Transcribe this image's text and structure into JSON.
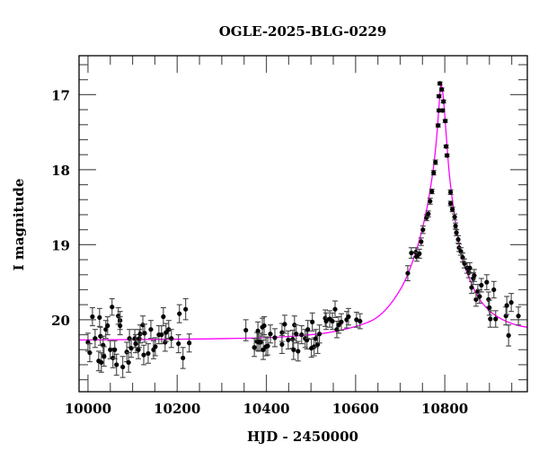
{
  "chart_data": {
    "type": "scatter",
    "title": "OGLE-2025-BLG-0229",
    "xlabel": "HJD - 2450000",
    "ylabel": "I magnitude",
    "xlim": [
      9980,
      10985
    ],
    "ylim": [
      20.96,
      16.48
    ],
    "y_inverted": true,
    "grid": false,
    "x_ticks": [
      10000,
      10200,
      10400,
      10600,
      10800
    ],
    "y_ticks": [
      17,
      18,
      19,
      20
    ],
    "colors": {
      "points": "#000000",
      "model": "#ff00ff"
    },
    "points_format": [
      "hjd",
      "mag",
      "err"
    ],
    "points": [
      [
        10000,
        20.3,
        0.12
      ],
      [
        10004,
        20.44,
        0.12
      ],
      [
        10010,
        19.96,
        0.12
      ],
      [
        10016,
        20.25,
        0.12
      ],
      [
        10024,
        20.55,
        0.13
      ],
      [
        10026,
        19.97,
        0.12
      ],
      [
        10028,
        20.22,
        0.12
      ],
      [
        10030,
        20.57,
        0.13
      ],
      [
        10034,
        20.34,
        0.12
      ],
      [
        10036,
        20.49,
        0.13
      ],
      [
        10040,
        20.13,
        0.12
      ],
      [
        10044,
        20.08,
        0.12
      ],
      [
        10050,
        20.4,
        0.12
      ],
      [
        10054,
        19.83,
        0.11
      ],
      [
        10056,
        20.51,
        0.13
      ],
      [
        10060,
        20.4,
        0.12
      ],
      [
        10064,
        20.6,
        0.14
      ],
      [
        10068,
        19.95,
        0.11
      ],
      [
        10072,
        20.01,
        0.12
      ],
      [
        10072,
        20.08,
        0.12
      ],
      [
        10078,
        20.63,
        0.14
      ],
      [
        10087,
        20.43,
        0.13
      ],
      [
        10091,
        20.57,
        0.13
      ],
      [
        10093,
        20.25,
        0.12
      ],
      [
        10097,
        20.38,
        0.12
      ],
      [
        10105,
        20.25,
        0.12
      ],
      [
        10107,
        20.32,
        0.12
      ],
      [
        10113,
        20.4,
        0.12
      ],
      [
        10115,
        20.25,
        0.12
      ],
      [
        10117,
        20.19,
        0.12
      ],
      [
        10123,
        20.07,
        0.12
      ],
      [
        10125,
        20.47,
        0.13
      ],
      [
        10127,
        20.18,
        0.12
      ],
      [
        10135,
        20.45,
        0.13
      ],
      [
        10141,
        20.13,
        0.12
      ],
      [
        10147,
        20.4,
        0.12
      ],
      [
        10151,
        20.36,
        0.12
      ],
      [
        10159,
        20.2,
        0.12
      ],
      [
        10165,
        20.2,
        0.12
      ],
      [
        10169,
        19.96,
        0.12
      ],
      [
        10173,
        20.3,
        0.12
      ],
      [
        10175,
        20.17,
        0.12
      ],
      [
        10181,
        20.13,
        0.12
      ],
      [
        10187,
        20.25,
        0.12
      ],
      [
        10203,
        20.32,
        0.12
      ],
      [
        10205,
        19.92,
        0.12
      ],
      [
        10213,
        20.51,
        0.14
      ],
      [
        10219,
        19.86,
        0.14
      ],
      [
        10227,
        20.31,
        0.12
      ],
      [
        10354,
        20.14,
        0.14
      ],
      [
        10373,
        20.37,
        0.12
      ],
      [
        10379,
        20.29,
        0.12
      ],
      [
        10381,
        20.15,
        0.12
      ],
      [
        10383,
        20.3,
        0.12
      ],
      [
        10387,
        20.3,
        0.12
      ],
      [
        10391,
        20.1,
        0.12
      ],
      [
        10393,
        20.4,
        0.13
      ],
      [
        10395,
        20.08,
        0.12
      ],
      [
        10399,
        20.36,
        0.12
      ],
      [
        10403,
        20.35,
        0.12
      ],
      [
        10409,
        20.19,
        0.12
      ],
      [
        10419,
        20.24,
        0.12
      ],
      [
        10435,
        20.17,
        0.12
      ],
      [
        10435,
        20.33,
        0.12
      ],
      [
        10441,
        20.06,
        0.12
      ],
      [
        10449,
        20.27,
        0.12
      ],
      [
        10459,
        20.26,
        0.12
      ],
      [
        10461,
        20.4,
        0.13
      ],
      [
        10463,
        20.07,
        0.12
      ],
      [
        10467,
        20.19,
        0.12
      ],
      [
        10471,
        20.42,
        0.13
      ],
      [
        10479,
        20.2,
        0.12
      ],
      [
        10487,
        20.25,
        0.12
      ],
      [
        10491,
        20.27,
        0.12
      ],
      [
        10493,
        20.13,
        0.12
      ],
      [
        10501,
        20.38,
        0.12
      ],
      [
        10503,
        20.03,
        0.12
      ],
      [
        10507,
        20.36,
        0.12
      ],
      [
        10511,
        20.25,
        0.12
      ],
      [
        10515,
        20.33,
        0.12
      ],
      [
        10519,
        20.19,
        0.12
      ],
      [
        10532,
        19.98,
        0.11
      ],
      [
        10534,
        20.02,
        0.11
      ],
      [
        10542,
        19.99,
        0.11
      ],
      [
        10548,
        20.02,
        0.11
      ],
      [
        10554,
        19.86,
        0.11
      ],
      [
        10558,
        20.13,
        0.11
      ],
      [
        10562,
        20.07,
        0.11
      ],
      [
        10568,
        20.03,
        0.11
      ],
      [
        10580,
        20.0,
        0.11
      ],
      [
        10584,
        19.96,
        0.11
      ],
      [
        10602,
        20.0,
        0.1
      ],
      [
        10610,
        20.02,
        0.1
      ],
      [
        10717,
        19.38,
        0.1
      ],
      [
        10725,
        19.11,
        0.07
      ],
      [
        10735,
        19.1,
        0.06
      ],
      [
        10737,
        19.16,
        0.06
      ],
      [
        10743,
        19.12,
        0.06
      ],
      [
        10747,
        18.96,
        0.05
      ],
      [
        10751,
        18.8,
        0.05
      ],
      [
        10759,
        18.64,
        0.04
      ],
      [
        10763,
        18.59,
        0.04
      ],
      [
        10767,
        18.42,
        0.04
      ],
      [
        10771,
        18.29,
        0.03
      ],
      [
        10775,
        18.04,
        0.03
      ],
      [
        10779,
        17.9,
        0.03
      ],
      [
        10785,
        17.41,
        0.02
      ],
      [
        10787,
        17.21,
        0.02
      ],
      [
        10787,
        17.02,
        0.02
      ],
      [
        10789,
        16.85,
        0.02
      ],
      [
        10793,
        16.93,
        0.02
      ],
      [
        10795,
        17.21,
        0.02
      ],
      [
        10797,
        17.09,
        0.02
      ],
      [
        10801,
        17.35,
        0.02
      ],
      [
        10803,
        17.69,
        0.02
      ],
      [
        10805,
        17.81,
        0.02
      ],
      [
        10813,
        18.3,
        0.03
      ],
      [
        10813,
        18.45,
        0.03
      ],
      [
        10817,
        18.53,
        0.03
      ],
      [
        10822,
        18.63,
        0.04
      ],
      [
        10824,
        18.75,
        0.04
      ],
      [
        10826,
        18.84,
        0.04
      ],
      [
        10830,
        18.93,
        0.05
      ],
      [
        10832,
        19.04,
        0.05
      ],
      [
        10836,
        19.09,
        0.05
      ],
      [
        10840,
        19.17,
        0.06
      ],
      [
        10844,
        19.25,
        0.06
      ],
      [
        10850,
        19.31,
        0.07
      ],
      [
        10854,
        19.37,
        0.07
      ],
      [
        10856,
        19.31,
        0.07
      ],
      [
        10860,
        19.57,
        0.08
      ],
      [
        10864,
        19.45,
        0.08
      ],
      [
        10866,
        19.41,
        0.08
      ],
      [
        10870,
        19.73,
        0.09
      ],
      [
        10874,
        19.62,
        0.09
      ],
      [
        10878,
        19.69,
        0.09
      ],
      [
        10882,
        19.54,
        0.09
      ],
      [
        10894,
        19.5,
        0.1
      ],
      [
        10898,
        19.73,
        0.1
      ],
      [
        10900,
        19.84,
        0.1
      ],
      [
        10902,
        19.99,
        0.11
      ],
      [
        10910,
        19.6,
        0.11
      ],
      [
        10914,
        19.99,
        0.11
      ],
      [
        10937,
        19.95,
        0.12
      ],
      [
        10939,
        19.81,
        0.12
      ],
      [
        10943,
        20.21,
        0.14
      ],
      [
        10949,
        19.77,
        0.12
      ],
      [
        10965,
        19.95,
        0.12
      ]
    ],
    "model": {
      "x": [
        9980,
        10200,
        10400,
        10500,
        10550,
        10600,
        10640,
        10670,
        10700,
        10720,
        10740,
        10755,
        10765,
        10775,
        10782,
        10787,
        10790,
        10792,
        10795,
        10799,
        10804,
        10810,
        10818,
        10828,
        10840,
        10855,
        10875,
        10900,
        10930,
        10960,
        10985
      ],
      "y": [
        20.27,
        20.26,
        20.24,
        20.2,
        20.16,
        20.09,
        20.0,
        19.85,
        19.6,
        19.35,
        19.0,
        18.65,
        18.35,
        17.95,
        17.55,
        17.15,
        16.92,
        16.88,
        16.95,
        17.2,
        17.6,
        18.05,
        18.45,
        18.85,
        19.2,
        19.45,
        19.7,
        19.88,
        20.0,
        20.07,
        20.1
      ]
    }
  }
}
